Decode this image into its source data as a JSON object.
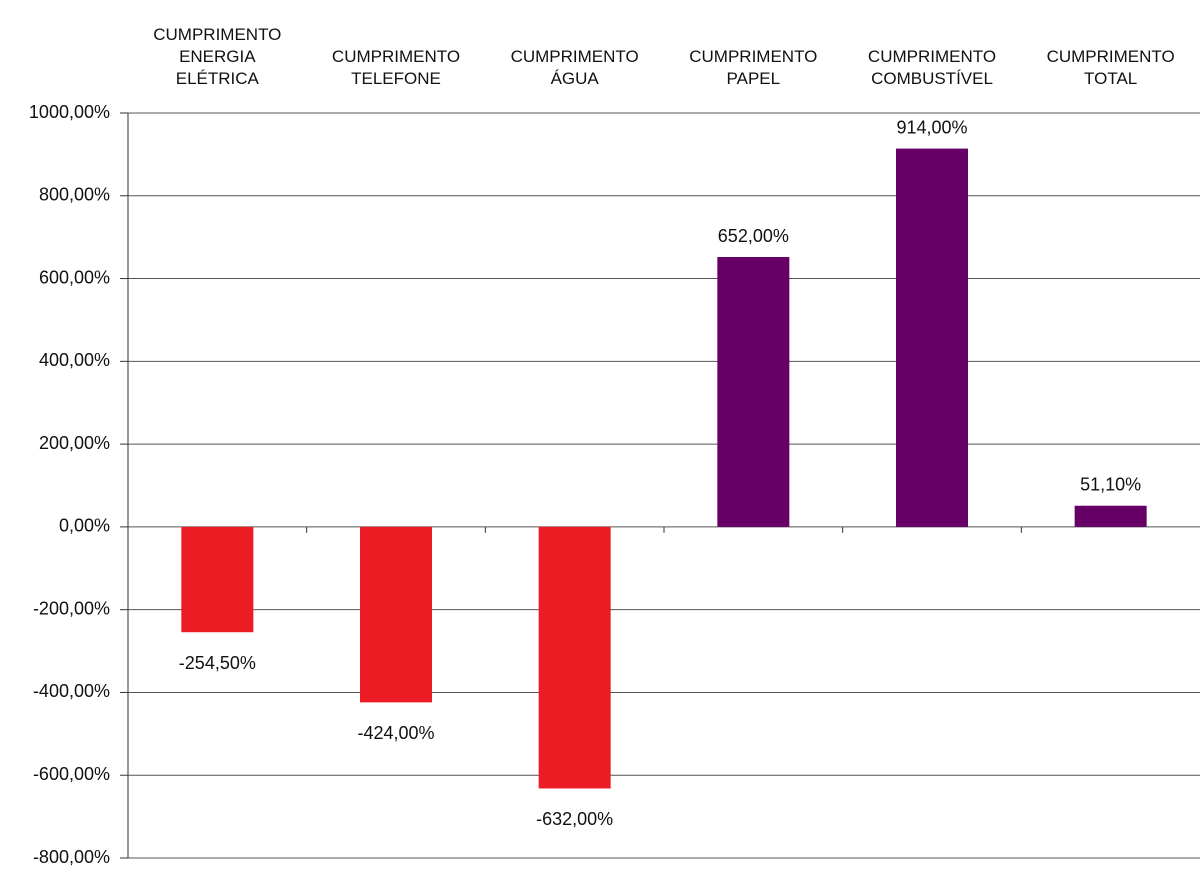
{
  "chart_data": {
    "type": "bar",
    "categories": [
      "CUMPRIMENTO\nENERGIA\nELÉTRICA",
      "CUMPRIMENTO\nTELEFONE",
      "CUMPRIMENTO\nÁGUA",
      "CUMPRIMENTO\nPAPEL",
      "CUMPRIMENTO\nCOMBUSTÍVEL",
      "CUMPRIMENTO\nTOTAL"
    ],
    "values": [
      -254.5,
      -424,
      -632,
      652,
      914,
      51.1
    ],
    "value_labels": [
      "-254,50%",
      "-424,00%",
      "-632,00%",
      "652,00%",
      "914,00%",
      "51,10%"
    ],
    "colors": [
      "#ed1c24",
      "#ed1c24",
      "#ed1c24",
      "#660066",
      "#660066",
      "#660066"
    ],
    "ylim": [
      -800,
      1000
    ],
    "yticks": [
      {
        "value": -800,
        "label": "-800,00%"
      },
      {
        "value": -600,
        "label": "-600,00%"
      },
      {
        "value": -400,
        "label": "-400,00%"
      },
      {
        "value": -200,
        "label": "-200,00%"
      },
      {
        "value": 0,
        "label": "0,00%"
      },
      {
        "value": 200,
        "label": "200,00%"
      },
      {
        "value": 400,
        "label": "400,00%"
      },
      {
        "value": 600,
        "label": "600,00%"
      },
      {
        "value": 800,
        "label": "800,00%"
      },
      {
        "value": 1000,
        "label": "1000,00%"
      }
    ],
    "grid": true
  }
}
